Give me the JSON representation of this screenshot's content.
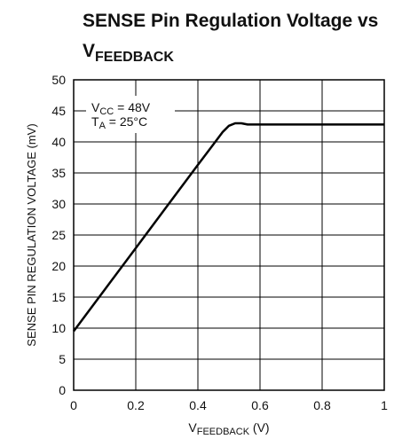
{
  "chart_data": {
    "type": "line",
    "title": {
      "text": "SENSE Pin Regulation Voltage vs",
      "symbol": "V",
      "subscript": "FEEDBACK"
    },
    "x_label": {
      "symbol": "V",
      "subscript": "FEEDBACK",
      "text": " (V)"
    },
    "y_label": "SENSE PIN REGULATION VOLTAGE (mV)",
    "annotations": [
      {
        "symbol": "V",
        "subscript": "CC",
        "text": " = 48V"
      },
      {
        "symbol": "T",
        "subscript": "A",
        "text": " = 25°C"
      }
    ],
    "x": [
      0,
      0.1,
      0.2,
      0.3,
      0.4,
      0.45,
      0.48,
      0.5,
      0.52,
      0.54,
      0.56,
      0.6,
      0.7,
      0.8,
      0.9,
      1
    ],
    "series": [
      {
        "name": "SENSE",
        "color": "#000000",
        "values": [
          9.5,
          16.2,
          22.9,
          29.6,
          36.3,
          39.6,
          41.6,
          42.6,
          43.0,
          43.0,
          42.8,
          42.8,
          42.8,
          42.8,
          42.8,
          42.8
        ]
      }
    ],
    "xlim": [
      0,
      1
    ],
    "xticks": [
      0,
      0.2,
      0.4,
      0.6,
      0.8,
      1
    ],
    "ylim": [
      0,
      50
    ],
    "yticks": [
      0,
      5,
      10,
      15,
      20,
      25,
      30,
      35,
      40,
      45,
      50
    ],
    "grid": true
  }
}
